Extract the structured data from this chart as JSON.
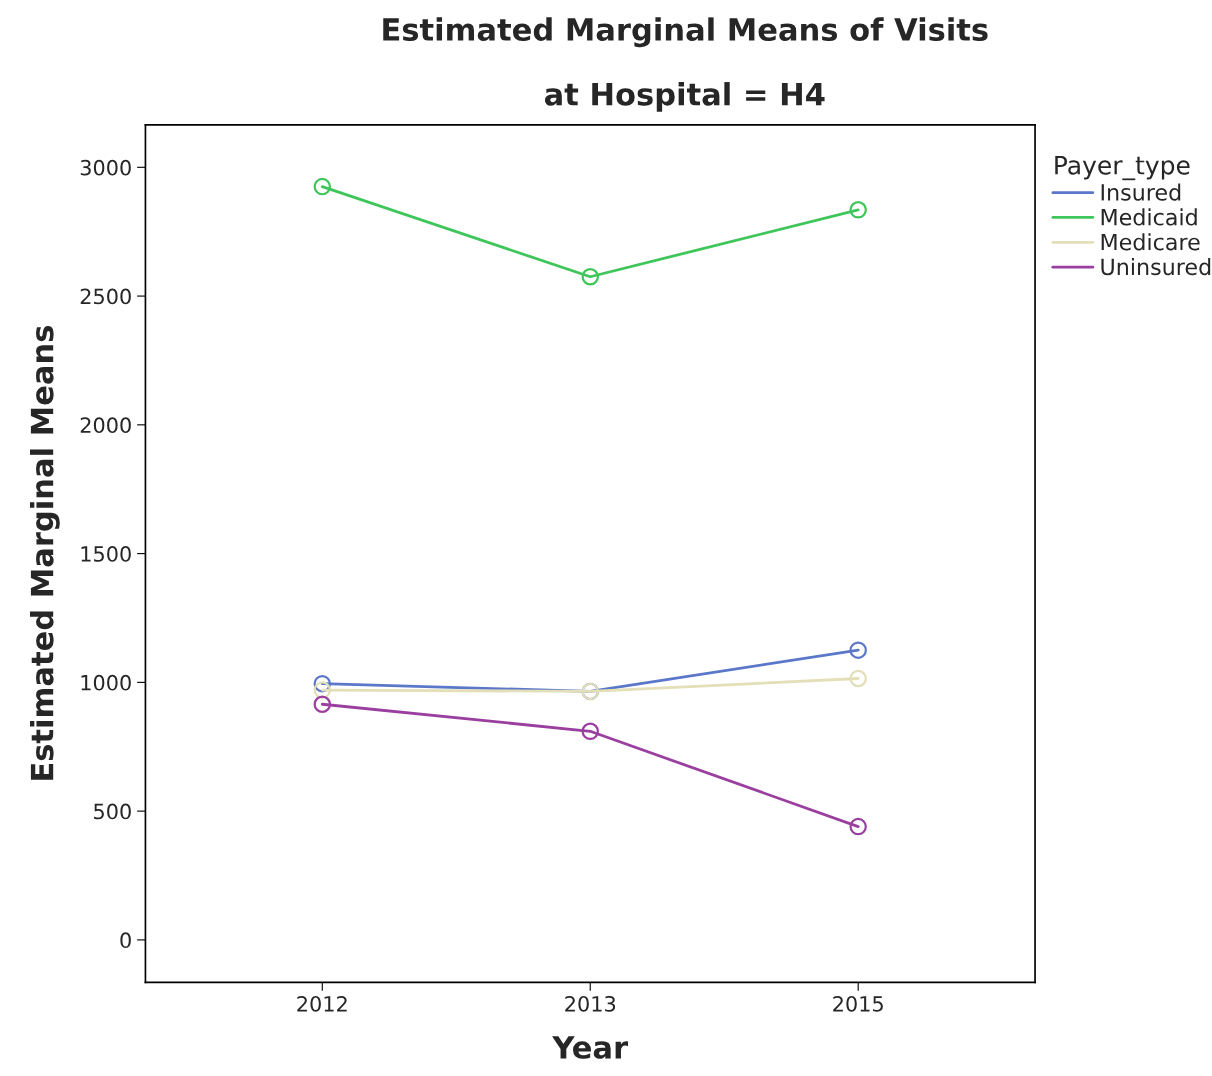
{
  "chart_data": {
    "type": "line",
    "title": "Estimated Marginal Means of Visits",
    "subtitle": "at Hospital = H4",
    "xlabel": "Year",
    "ylabel": "Estimated Marginal Means",
    "legend_title": "Payer_type",
    "categories": [
      "2012",
      "2013",
      "2015"
    ],
    "series": [
      {
        "name": "Insured",
        "color": "#5b77c9",
        "values": [
          995,
          965,
          1125
        ]
      },
      {
        "name": "Medicaid",
        "color": "#3fc65a",
        "values": [
          2925,
          2575,
          2835
        ]
      },
      {
        "name": "Medicare",
        "color": "#e3dfb8",
        "values": [
          970,
          965,
          1015
        ]
      },
      {
        "name": "Uninsured",
        "color": "#9a3fa0",
        "values": [
          915,
          810,
          440
        ]
      }
    ],
    "ylim": [
      -165,
      3165
    ],
    "yticks": [
      0,
      500,
      1000,
      1500,
      2000,
      2500,
      3000
    ],
    "grid": false,
    "legend": "top right",
    "marker": "circle",
    "line_style": "solid"
  }
}
